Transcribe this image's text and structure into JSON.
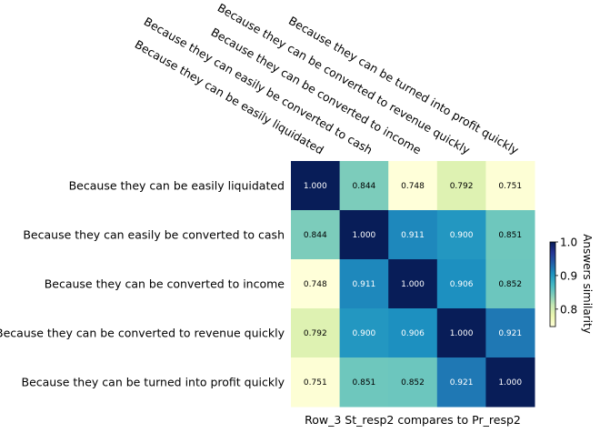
{
  "chart_data": {
    "type": "heatmap",
    "title": "",
    "xlabel": "Row_3 St_resp2 compares to Pr_resp2",
    "ylabel": "",
    "row_labels": [
      "Because they can be easily liquidated",
      "Because they can easily be converted to cash",
      "Because they can be converted to income",
      "Because they can be converted to revenue quickly",
      "Because they can be turned into profit quickly"
    ],
    "col_labels": [
      "Because they can be easily liquidated",
      "Because they can easily be converted to cash",
      "Because they can be converted to income",
      "Because they can be converted to revenue quickly",
      "Because they can be turned into profit quickly"
    ],
    "values": [
      [
        1.0,
        0.844,
        0.748,
        0.792,
        0.751
      ],
      [
        0.844,
        1.0,
        0.911,
        0.9,
        0.851
      ],
      [
        0.748,
        0.911,
        1.0,
        0.906,
        0.852
      ],
      [
        0.792,
        0.9,
        0.906,
        1.0,
        0.921
      ],
      [
        0.751,
        0.851,
        0.852,
        0.921,
        1.0
      ]
    ],
    "value_labels": [
      [
        "1.000",
        "0.844",
        "0.748",
        "0.792",
        "0.751"
      ],
      [
        "0.844",
        "1.000",
        "0.911",
        "0.900",
        "0.851"
      ],
      [
        "0.748",
        "0.911",
        "1.000",
        "0.906",
        "0.852"
      ],
      [
        "0.792",
        "0.900",
        "0.906",
        "1.000",
        "0.921"
      ],
      [
        "0.751",
        "0.851",
        "0.852",
        "0.921",
        "1.000"
      ]
    ],
    "colorbar": {
      "label": "Answers similarity",
      "colormap": "YlGnBu",
      "range": [
        0.748,
        1.0
      ],
      "ticks": [
        0.8,
        0.9,
        1.0
      ],
      "tick_labels": [
        "0.8",
        "0.9",
        "1.0"
      ]
    },
    "colormap_stops": [
      "#ffffd9",
      "#edf8b1",
      "#c7e9b4",
      "#7fcdbb",
      "#41b6c4",
      "#1d91c0",
      "#225ea8",
      "#253494",
      "#081d58"
    ]
  }
}
